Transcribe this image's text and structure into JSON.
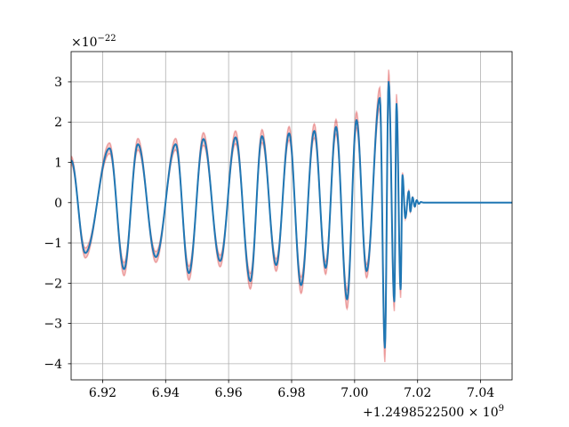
{
  "chart_data": {
    "type": "line",
    "y_multiplier_label": "×10",
    "y_multiplier_exp": "−22",
    "x_offset_label": "+1.2498522500 × 10",
    "x_offset_exp": "9",
    "xlim": [
      6.91,
      7.05
    ],
    "ylim": [
      -4.4,
      3.75
    ],
    "grid": true,
    "x_ticks": [
      {
        "value": 6.92,
        "label": "6.92"
      },
      {
        "value": 6.94,
        "label": "6.94"
      },
      {
        "value": 6.96,
        "label": "6.96"
      },
      {
        "value": 6.98,
        "label": "6.98"
      },
      {
        "value": 7.0,
        "label": "7.00"
      },
      {
        "value": 7.02,
        "label": "7.02"
      },
      {
        "value": 7.04,
        "label": "7.04"
      }
    ],
    "y_ticks": [
      {
        "value": 3,
        "label": "3"
      },
      {
        "value": 2,
        "label": "2"
      },
      {
        "value": 1,
        "label": "1"
      },
      {
        "value": 0,
        "label": "0"
      },
      {
        "value": -1,
        "label": "−1"
      },
      {
        "value": -2,
        "label": "−2"
      },
      {
        "value": -3,
        "label": "−3"
      },
      {
        "value": -4,
        "label": "−4"
      }
    ],
    "series_color": "#1f77b4",
    "band_color": "#d62728",
    "series": {
      "extrema_x": [
        6.91,
        6.9145,
        6.9222,
        6.9268,
        6.9312,
        6.9369,
        6.9432,
        6.9474,
        6.952,
        6.9573,
        6.9622,
        6.9669,
        6.9706,
        6.9751,
        6.9792,
        6.983,
        6.9872,
        6.9908,
        6.9941,
        6.9976,
        7.0006,
        7.0038,
        7.008,
        7.0096,
        7.0108,
        7.0126,
        7.0133,
        7.0146,
        7.0152,
        7.0161,
        7.0172,
        7.0177,
        7.0184,
        7.0191,
        7.0197,
        7.0204,
        7.021,
        7.022,
        7.05
      ],
      "extrema_y": [
        1.05,
        -1.25,
        1.35,
        -1.65,
        1.45,
        -1.35,
        1.45,
        -1.75,
        1.58,
        -1.45,
        1.62,
        -1.95,
        1.65,
        -1.55,
        1.72,
        -2.05,
        1.78,
        -1.62,
        1.88,
        -2.4,
        2.05,
        -1.7,
        2.6,
        -3.6,
        3.0,
        -2.45,
        2.45,
        -2.15,
        0.68,
        -0.38,
        0.28,
        -0.22,
        0.13,
        -0.1,
        0.06,
        -0.03,
        0.015,
        0.0,
        0.0
      ]
    }
  }
}
